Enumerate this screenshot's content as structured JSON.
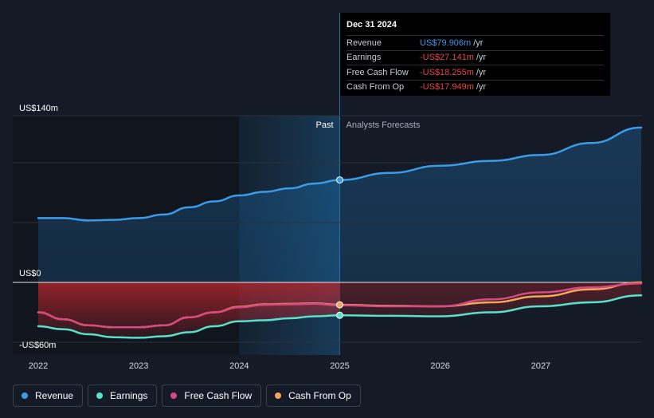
{
  "chart_data": {
    "type": "line",
    "x_ticks": [
      "2022",
      "2023",
      "2024",
      "2025",
      "2026",
      "2027"
    ],
    "y_labels": {
      "top": "US$140m",
      "zero": "US$0",
      "bottom": "-US$60m"
    },
    "ylim": [
      -60,
      140
    ],
    "past_label": "Past",
    "forecast_label": "Analysts Forecasts",
    "highlight_x": 2025.0,
    "series": [
      {
        "name": "Revenue",
        "color": "#3b9be8",
        "points": [
          [
            2022.0,
            54
          ],
          [
            2022.25,
            54
          ],
          [
            2022.5,
            52
          ],
          [
            2022.75,
            52.5
          ],
          [
            2023.0,
            54
          ],
          [
            2023.25,
            57
          ],
          [
            2023.5,
            63
          ],
          [
            2023.75,
            68
          ],
          [
            2024.0,
            73
          ],
          [
            2024.25,
            76
          ],
          [
            2024.5,
            79
          ],
          [
            2024.75,
            83
          ],
          [
            2025.0,
            86
          ],
          [
            2025.5,
            92
          ],
          [
            2026.0,
            98
          ],
          [
            2026.5,
            102
          ],
          [
            2027.0,
            107
          ],
          [
            2027.5,
            117
          ],
          [
            2028.0,
            130
          ]
        ]
      },
      {
        "name": "Earnings",
        "color": "#58e0c8",
        "points": [
          [
            2022.0,
            -44
          ],
          [
            2022.25,
            -47
          ],
          [
            2022.5,
            -52
          ],
          [
            2022.75,
            -55
          ],
          [
            2023.0,
            -55.5
          ],
          [
            2023.25,
            -54
          ],
          [
            2023.5,
            -50
          ],
          [
            2023.75,
            -44
          ],
          [
            2024.0,
            -39
          ],
          [
            2024.25,
            -38
          ],
          [
            2024.5,
            -36
          ],
          [
            2024.75,
            -34
          ],
          [
            2025.0,
            -33
          ],
          [
            2025.5,
            -33.5
          ],
          [
            2026.0,
            -34
          ],
          [
            2026.5,
            -30
          ],
          [
            2027.0,
            -24
          ],
          [
            2027.5,
            -20
          ],
          [
            2028.0,
            -13
          ]
        ]
      },
      {
        "name": "Free Cash Flow",
        "color": "#d6497f",
        "points": [
          [
            2022.0,
            -30
          ],
          [
            2022.25,
            -37
          ],
          [
            2022.5,
            -43
          ],
          [
            2022.75,
            -45
          ],
          [
            2023.0,
            -45
          ],
          [
            2023.25,
            -43
          ],
          [
            2023.5,
            -35
          ],
          [
            2023.75,
            -30
          ],
          [
            2024.0,
            -25
          ],
          [
            2024.25,
            -22.5
          ],
          [
            2024.5,
            -22
          ],
          [
            2024.75,
            -21.5
          ],
          [
            2025.0,
            -23
          ],
          [
            2025.5,
            -24
          ],
          [
            2026.0,
            -24
          ],
          [
            2026.5,
            -17
          ],
          [
            2027.0,
            -10
          ],
          [
            2027.5,
            -5
          ],
          [
            2028.0,
            -1
          ]
        ]
      },
      {
        "name": "Cash From Op",
        "color": "#f2a65a",
        "points": [
          [
            2022.0,
            -30
          ],
          [
            2022.25,
            -37
          ],
          [
            2022.5,
            -43
          ],
          [
            2022.75,
            -45
          ],
          [
            2023.0,
            -45
          ],
          [
            2023.25,
            -43
          ],
          [
            2023.5,
            -35
          ],
          [
            2023.75,
            -30
          ],
          [
            2024.0,
            -24.5
          ],
          [
            2024.25,
            -22
          ],
          [
            2024.5,
            -21.5
          ],
          [
            2024.75,
            -21
          ],
          [
            2025.0,
            -22.5
          ],
          [
            2025.5,
            -23.5
          ],
          [
            2026.0,
            -24
          ],
          [
            2026.5,
            -20
          ],
          [
            2027.0,
            -14
          ],
          [
            2027.5,
            -7
          ],
          [
            2028.0,
            0
          ]
        ]
      }
    ]
  },
  "tooltip": {
    "date": "Dec 31 2024",
    "rows": [
      {
        "name": "Revenue",
        "value": "US$79.906m",
        "unit": "/yr",
        "color": "#3b9be8"
      },
      {
        "name": "Earnings",
        "value": "-US$27.141m",
        "unit": "/yr",
        "color": "#e8454a"
      },
      {
        "name": "Free Cash Flow",
        "value": "-US$18.255m",
        "unit": "/yr",
        "color": "#e8454a"
      },
      {
        "name": "Cash From Op",
        "value": "-US$17.949m",
        "unit": "/yr",
        "color": "#e8454a"
      }
    ]
  },
  "legend": [
    {
      "label": "Revenue",
      "color": "#3b9be8"
    },
    {
      "label": "Earnings",
      "color": "#58e0c8"
    },
    {
      "label": "Free Cash Flow",
      "color": "#d6497f"
    },
    {
      "label": "Cash From Op",
      "color": "#f2a65a"
    }
  ]
}
